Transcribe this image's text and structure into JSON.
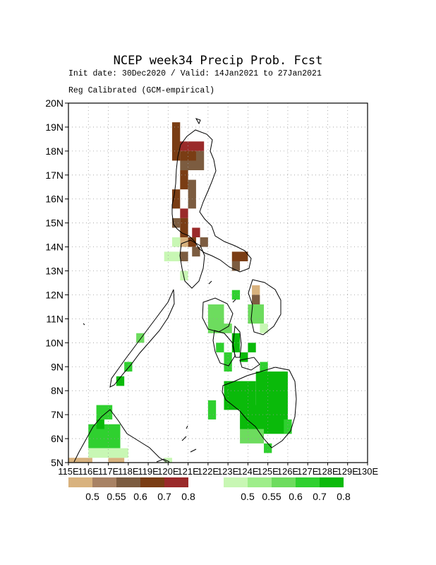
{
  "header": {
    "title": "NCEP week34 Precip Prob. Fcst",
    "line1": "Init date: 30Dec2020 / Valid: 14Jan2021 to 27Jan2021",
    "line2": "Reg Calibrated (GCM-empirical)"
  },
  "axes": {
    "lon_min": 115,
    "lon_max": 130,
    "lat_min": 5,
    "lat_max": 20,
    "x_ticks": [
      "115E",
      "116E",
      "117E",
      "118E",
      "119E",
      "120E",
      "121E",
      "122E",
      "123E",
      "124E",
      "125E",
      "126E",
      "127E",
      "128E",
      "129E",
      "130E"
    ],
    "y_ticks": [
      "5N",
      "6N",
      "7N",
      "8N",
      "9N",
      "10N",
      "11N",
      "12N",
      "13N",
      "14N",
      "15N",
      "16N",
      "17N",
      "18N",
      "19N",
      "20N"
    ],
    "grid": true
  },
  "legend": {
    "dry": {
      "colors": [
        "#d8b27e",
        "#a88264",
        "#7c5c40",
        "#7a3d14",
        "#9a2a2a"
      ],
      "labels": [
        "0.5",
        "0.55",
        "0.6",
        "0.7",
        "0.8"
      ]
    },
    "wet": {
      "colors": [
        "#c8f7b4",
        "#9eee8a",
        "#6ddc5e",
        "#2fd02f",
        "#0aba0a"
      ],
      "labels": [
        "0.5",
        "0.55",
        "0.6",
        "0.7",
        "0.8"
      ]
    }
  },
  "chart_data": {
    "type": "heatmap",
    "title": "NCEP week34 Precip Prob. Fcst",
    "cell_deg": 0.4,
    "categories_dry": [
      "0.5",
      "0.55",
      "0.6",
      "0.7",
      "0.8"
    ],
    "categories_wet": [
      "0.5",
      "0.55",
      "0.6",
      "0.7",
      "0.8"
    ],
    "cells": [
      {
        "lon": 120.2,
        "lat": 18.0,
        "cat": "dry-0.8",
        "w": 1.6,
        "h": 0.4
      },
      {
        "lon": 120.2,
        "lat": 17.6,
        "cat": "dry-0.7",
        "w": 0.4,
        "h": 1.6
      },
      {
        "lon": 120.6,
        "lat": 17.2,
        "cat": "dry-0.6",
        "w": 1.2,
        "h": 0.8
      },
      {
        "lon": 120.6,
        "lat": 17.6,
        "cat": "dry-0.7",
        "w": 0.8,
        "h": 0.4
      },
      {
        "lon": 120.6,
        "lat": 16.4,
        "cat": "dry-0.7",
        "w": 0.4,
        "h": 0.8
      },
      {
        "lon": 121.0,
        "lat": 15.6,
        "cat": "dry-0.6",
        "w": 0.4,
        "h": 1.2
      },
      {
        "lon": 120.2,
        "lat": 15.6,
        "cat": "dry-0.7",
        "w": 0.4,
        "h": 0.8
      },
      {
        "lon": 120.6,
        "lat": 15.2,
        "cat": "dry-0.8",
        "w": 0.4,
        "h": 0.4
      },
      {
        "lon": 120.2,
        "lat": 14.8,
        "cat": "dry-0.6",
        "w": 0.4,
        "h": 0.4
      },
      {
        "lon": 120.6,
        "lat": 14.4,
        "cat": "dry-0.7",
        "w": 0.4,
        "h": 0.8
      },
      {
        "lon": 121.2,
        "lat": 14.4,
        "cat": "dry-0.8",
        "w": 0.4,
        "h": 0.4
      },
      {
        "lon": 120.6,
        "lat": 14.0,
        "cat": "dry-0.5",
        "w": 0.4,
        "h": 0.4
      },
      {
        "lon": 121.0,
        "lat": 14.0,
        "cat": "dry-0.7",
        "w": 0.4,
        "h": 0.4
      },
      {
        "lon": 121.6,
        "lat": 14.0,
        "cat": "dry-0.6",
        "w": 0.4,
        "h": 0.4
      },
      {
        "lon": 121.2,
        "lat": 13.6,
        "cat": "dry-0.6",
        "w": 0.4,
        "h": 0.4
      },
      {
        "lon": 120.6,
        "lat": 13.4,
        "cat": "dry-0.6",
        "w": 0.4,
        "h": 0.4
      },
      {
        "lon": 123.2,
        "lat": 13.4,
        "cat": "dry-0.7",
        "w": 0.8,
        "h": 0.4
      },
      {
        "lon": 123.2,
        "lat": 13.0,
        "cat": "dry-0.6",
        "w": 0.4,
        "h": 0.4
      },
      {
        "lon": 124.2,
        "lat": 12.0,
        "cat": "dry-0.5",
        "w": 0.4,
        "h": 0.4
      },
      {
        "lon": 124.2,
        "lat": 11.6,
        "cat": "dry-0.6",
        "w": 0.4,
        "h": 0.4
      },
      {
        "lon": 115.0,
        "lat": 5.0,
        "cat": "dry-0.5",
        "w": 1.2,
        "h": 0.2
      },
      {
        "lon": 117.0,
        "lat": 5.0,
        "cat": "dry-0.5",
        "w": 0.8,
        "h": 0.2
      },
      {
        "lon": 120.2,
        "lat": 14.0,
        "cat": "wet-0.5",
        "w": 0.4,
        "h": 0.4
      },
      {
        "lon": 119.8,
        "lat": 13.4,
        "cat": "wet-0.5",
        "w": 0.8,
        "h": 0.4
      },
      {
        "lon": 120.6,
        "lat": 12.6,
        "cat": "wet-0.5",
        "w": 0.4,
        "h": 0.4
      },
      {
        "lon": 122.0,
        "lat": 10.4,
        "cat": "wet-0.6",
        "w": 0.8,
        "h": 1.2
      },
      {
        "lon": 122.8,
        "lat": 10.4,
        "cat": "wet-0.6",
        "w": 0.4,
        "h": 0.4
      },
      {
        "lon": 122.4,
        "lat": 9.6,
        "cat": "wet-0.7",
        "w": 0.4,
        "h": 0.4
      },
      {
        "lon": 123.2,
        "lat": 9.6,
        "cat": "wet-0.8",
        "w": 0.4,
        "h": 0.8
      },
      {
        "lon": 122.8,
        "lat": 9.2,
        "cat": "wet-0.7",
        "w": 0.4,
        "h": 0.4
      },
      {
        "lon": 123.6,
        "lat": 9.2,
        "cat": "wet-0.8",
        "w": 0.4,
        "h": 0.4
      },
      {
        "lon": 123.2,
        "lat": 11.8,
        "cat": "wet-0.7",
        "w": 0.4,
        "h": 0.4
      },
      {
        "lon": 124.0,
        "lat": 10.8,
        "cat": "wet-0.6",
        "w": 0.8,
        "h": 0.8
      },
      {
        "lon": 124.6,
        "lat": 10.4,
        "cat": "wet-0.5",
        "w": 0.4,
        "h": 0.4
      },
      {
        "lon": 124.0,
        "lat": 9.6,
        "cat": "wet-0.8",
        "w": 0.4,
        "h": 0.4
      },
      {
        "lon": 122.8,
        "lat": 8.8,
        "cat": "wet-0.7",
        "w": 0.4,
        "h": 0.4
      },
      {
        "lon": 124.6,
        "lat": 8.8,
        "cat": "wet-0.7",
        "w": 0.4,
        "h": 0.4
      },
      {
        "lon": 122.8,
        "lat": 7.2,
        "cat": "wet-0.8",
        "w": 1.6,
        "h": 1.2
      },
      {
        "lon": 124.4,
        "lat": 6.2,
        "cat": "wet-0.8",
        "w": 1.6,
        "h": 2.6
      },
      {
        "lon": 123.6,
        "lat": 6.4,
        "cat": "wet-0.8",
        "w": 1.2,
        "h": 1.0
      },
      {
        "lon": 122.0,
        "lat": 6.8,
        "cat": "wet-0.7",
        "w": 0.4,
        "h": 0.8
      },
      {
        "lon": 123.6,
        "lat": 5.8,
        "cat": "wet-0.6",
        "w": 1.2,
        "h": 0.6
      },
      {
        "lon": 124.8,
        "lat": 5.4,
        "cat": "wet-0.7",
        "w": 0.4,
        "h": 0.4
      },
      {
        "lon": 125.8,
        "lat": 6.2,
        "cat": "wet-0.7",
        "w": 0.4,
        "h": 0.6
      },
      {
        "lon": 118.4,
        "lat": 10.0,
        "cat": "wet-0.6",
        "w": 0.4,
        "h": 0.4
      },
      {
        "lon": 117.8,
        "lat": 8.8,
        "cat": "wet-0.7",
        "w": 0.4,
        "h": 0.4
      },
      {
        "lon": 117.4,
        "lat": 8.2,
        "cat": "wet-0.8",
        "w": 0.4,
        "h": 0.4
      },
      {
        "lon": 116.4,
        "lat": 6.8,
        "cat": "wet-0.7",
        "w": 0.8,
        "h": 0.6
      },
      {
        "lon": 116.0,
        "lat": 5.6,
        "cat": "wet-0.7",
        "w": 1.6,
        "h": 1.0
      },
      {
        "lon": 116.4,
        "lat": 6.4,
        "cat": "wet-0.8",
        "w": 0.4,
        "h": 0.4
      },
      {
        "lon": 116.0,
        "lat": 5.2,
        "cat": "wet-0.5",
        "w": 2.0,
        "h": 0.4
      },
      {
        "lon": 119.8,
        "lat": 5.0,
        "cat": "wet-0.5",
        "w": 0.4,
        "h": 0.2
      }
    ]
  }
}
